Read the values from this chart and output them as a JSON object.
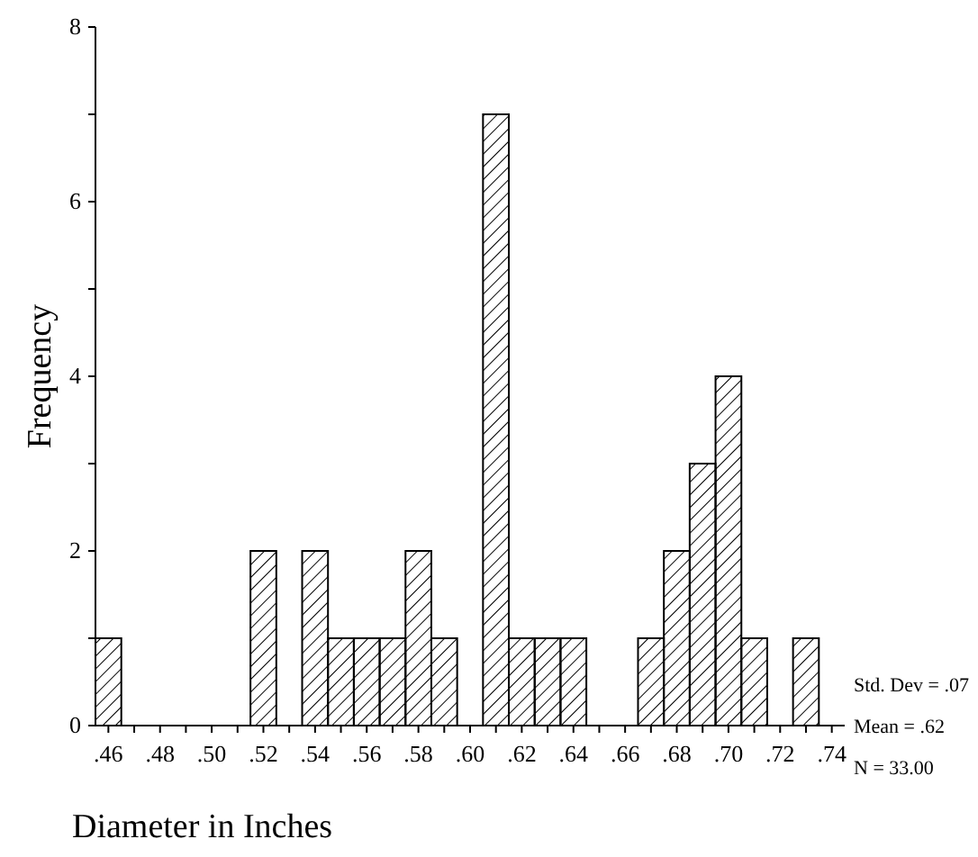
{
  "chart_data": {
    "type": "histogram",
    "xlabel": "Diameter in Inches",
    "ylabel": "Frequency",
    "bins": [
      0.455,
      0.465,
      0.475,
      0.485,
      0.495,
      0.505,
      0.515,
      0.525,
      0.535,
      0.545,
      0.555,
      0.565,
      0.575,
      0.585,
      0.595,
      0.605,
      0.615,
      0.625,
      0.635,
      0.645,
      0.655,
      0.665,
      0.675,
      0.685,
      0.695,
      0.705,
      0.715,
      0.725,
      0.735
    ],
    "values": [
      1,
      0,
      0,
      0,
      0,
      0,
      2,
      0,
      2,
      1,
      1,
      1,
      2,
      1,
      0,
      7,
      1,
      1,
      1,
      0,
      0,
      1,
      2,
      3,
      4,
      1,
      0,
      1
    ],
    "color": "#000000",
    "xlim": [
      0.455,
      0.745
    ],
    "xticks": [
      {
        "value": 0.46,
        "label": ".46"
      },
      {
        "value": 0.47,
        "label": null
      },
      {
        "value": 0.48,
        "label": ".48"
      },
      {
        "value": 0.49,
        "label": null
      },
      {
        "value": 0.5,
        "label": ".50"
      },
      {
        "value": 0.51,
        "label": null
      },
      {
        "value": 0.52,
        "label": ".52"
      },
      {
        "value": 0.53,
        "label": null
      },
      {
        "value": 0.54,
        "label": ".54"
      },
      {
        "value": 0.55,
        "label": null
      },
      {
        "value": 0.56,
        "label": ".56"
      },
      {
        "value": 0.57,
        "label": null
      },
      {
        "value": 0.58,
        "label": ".58"
      },
      {
        "value": 0.59,
        "label": null
      },
      {
        "value": 0.6,
        "label": ".60"
      },
      {
        "value": 0.61,
        "label": null
      },
      {
        "value": 0.62,
        "label": ".62"
      },
      {
        "value": 0.63,
        "label": null
      },
      {
        "value": 0.64,
        "label": ".64"
      },
      {
        "value": 0.65,
        "label": null
      },
      {
        "value": 0.66,
        "label": ".66"
      },
      {
        "value": 0.67,
        "label": null
      },
      {
        "value": 0.68,
        "label": ".68"
      },
      {
        "value": 0.69,
        "label": null
      },
      {
        "value": 0.7,
        "label": ".70"
      },
      {
        "value": 0.71,
        "label": null
      },
      {
        "value": 0.72,
        "label": ".72"
      },
      {
        "value": 0.73,
        "label": null
      },
      {
        "value": 0.74,
        "label": ".74"
      }
    ],
    "ylim": [
      0,
      8
    ],
    "yticks": [
      0,
      {
        "value": 1,
        "label": null
      },
      2,
      {
        "value": 3,
        "label": null
      },
      4,
      {
        "value": 5,
        "label": null
      },
      6,
      {
        "value": 7,
        "label": null
      },
      8
    ],
    "annotations": [
      "Std. Dev = .07",
      "Mean = .62",
      "N = 33.00"
    ]
  }
}
